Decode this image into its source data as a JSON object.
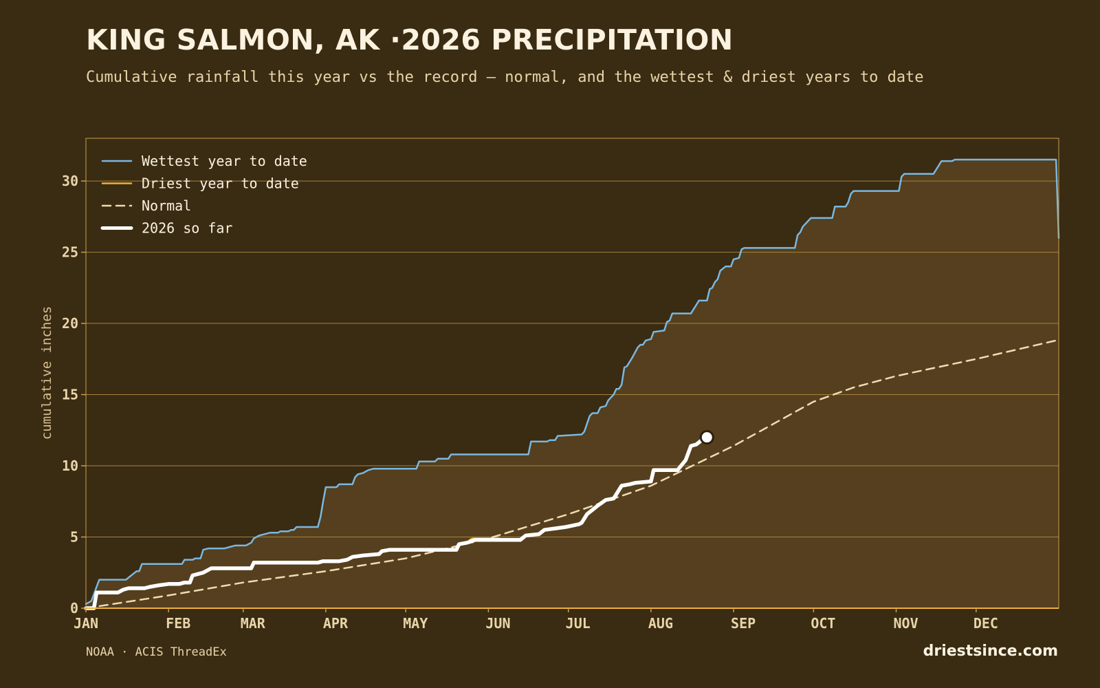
{
  "title": "KING SALMON, AK ·2026 PRECIPITATION",
  "subtitle": "Cumulative rainfall this year vs the record — normal, and the wettest & driest years to date",
  "source": "NOAA · ACIS ThreadEx",
  "brand": "driestsince.com",
  "colors": {
    "background": "#3a2b13",
    "wettest": "#7ab8e0",
    "driest": "#f0b13c",
    "normal": "#efdcb0",
    "current": "#ffffff",
    "fill": "#553f1e",
    "grid": "#a8843c",
    "frame": "#c9a04b"
  },
  "chart_data": {
    "type": "line",
    "ylabel": "cumulative inches",
    "xlabel": "",
    "ylim": [
      0,
      33
    ],
    "xlim": [
      0,
      365
    ],
    "yticks": [
      0,
      5,
      10,
      15,
      20,
      25,
      30
    ],
    "grid": true,
    "legend_position": "top-left",
    "month_ticks": [
      {
        "label": "JAN",
        "day": 0
      },
      {
        "label": "FEB",
        "day": 31
      },
      {
        "label": "MAR",
        "day": 59
      },
      {
        "label": "APR",
        "day": 90
      },
      {
        "label": "MAY",
        "day": 120
      },
      {
        "label": "JUN",
        "day": 151
      },
      {
        "label": "JUL",
        "day": 181
      },
      {
        "label": "AUG",
        "day": 212
      },
      {
        "label": "SEP",
        "day": 243
      },
      {
        "label": "OCT",
        "day": 273
      },
      {
        "label": "NOV",
        "day": 304
      },
      {
        "label": "DEC",
        "day": 334
      }
    ],
    "series": [
      {
        "name": "Wettest year to date",
        "style": "solid",
        "points": [
          [
            0,
            0.3
          ],
          [
            2,
            0.5
          ],
          [
            4,
            1.5
          ],
          [
            5,
            2.0
          ],
          [
            15,
            2.0
          ],
          [
            17,
            2.3
          ],
          [
            19,
            2.6
          ],
          [
            20,
            2.6
          ],
          [
            21,
            3.1
          ],
          [
            36,
            3.1
          ],
          [
            37,
            3.4
          ],
          [
            40,
            3.4
          ],
          [
            41,
            3.5
          ],
          [
            43,
            3.5
          ],
          [
            44,
            4.1
          ],
          [
            46,
            4.2
          ],
          [
            52,
            4.2
          ],
          [
            54,
            4.3
          ],
          [
            56,
            4.4
          ],
          [
            60,
            4.4
          ],
          [
            62,
            4.6
          ],
          [
            63,
            4.9
          ],
          [
            65,
            5.1
          ],
          [
            67,
            5.2
          ],
          [
            69,
            5.3
          ],
          [
            72,
            5.3
          ],
          [
            73,
            5.4
          ],
          [
            76,
            5.4
          ],
          [
            77,
            5.5
          ],
          [
            78,
            5.5
          ],
          [
            79,
            5.7
          ],
          [
            87,
            5.7
          ],
          [
            88,
            6.4
          ],
          [
            89,
            7.5
          ],
          [
            90,
            8.5
          ],
          [
            94,
            8.5
          ],
          [
            95,
            8.7
          ],
          [
            100,
            8.7
          ],
          [
            101,
            9.2
          ],
          [
            102,
            9.4
          ],
          [
            104,
            9.5
          ],
          [
            106,
            9.7
          ],
          [
            108,
            9.8
          ],
          [
            124,
            9.8
          ],
          [
            125,
            10.3
          ],
          [
            131,
            10.3
          ],
          [
            132,
            10.5
          ],
          [
            136,
            10.5
          ],
          [
            137,
            10.8
          ],
          [
            166,
            10.8
          ],
          [
            167,
            11.7
          ],
          [
            173,
            11.7
          ],
          [
            174,
            11.8
          ],
          [
            176,
            11.8
          ],
          [
            177,
            12.1
          ],
          [
            186,
            12.2
          ],
          [
            187,
            12.4
          ],
          [
            189,
            13.5
          ],
          [
            190,
            13.7
          ],
          [
            192,
            13.7
          ],
          [
            193,
            14.1
          ],
          [
            195,
            14.2
          ],
          [
            196,
            14.6
          ],
          [
            198,
            15.0
          ],
          [
            199,
            15.4
          ],
          [
            200,
            15.4
          ],
          [
            201,
            15.7
          ],
          [
            202,
            16.9
          ],
          [
            203,
            17.0
          ],
          [
            205,
            17.6
          ],
          [
            207,
            18.3
          ],
          [
            208,
            18.5
          ],
          [
            209,
            18.5
          ],
          [
            210,
            18.8
          ],
          [
            212,
            18.9
          ],
          [
            213,
            19.4
          ],
          [
            217,
            19.5
          ],
          [
            218,
            20.1
          ],
          [
            219,
            20.2
          ],
          [
            220,
            20.7
          ],
          [
            227,
            20.7
          ],
          [
            229,
            21.3
          ],
          [
            230,
            21.6
          ],
          [
            233,
            21.6
          ],
          [
            234,
            22.4
          ],
          [
            235,
            22.5
          ],
          [
            236,
            22.9
          ],
          [
            237,
            23.1
          ],
          [
            238,
            23.7
          ],
          [
            240,
            24.0
          ],
          [
            242,
            24.0
          ],
          [
            243,
            24.5
          ],
          [
            245,
            24.6
          ],
          [
            246,
            25.2
          ],
          [
            247,
            25.3
          ],
          [
            266,
            25.3
          ],
          [
            267,
            26.2
          ],
          [
            268,
            26.4
          ],
          [
            269,
            26.8
          ],
          [
            271,
            27.2
          ],
          [
            272,
            27.4
          ],
          [
            280,
            27.4
          ],
          [
            281,
            28.2
          ],
          [
            285,
            28.2
          ],
          [
            286,
            28.5
          ],
          [
            287,
            29.1
          ],
          [
            288,
            29.3
          ],
          [
            305,
            29.3
          ],
          [
            306,
            30.3
          ],
          [
            307,
            30.5
          ],
          [
            318,
            30.5
          ],
          [
            319,
            30.8
          ],
          [
            321,
            31.4
          ],
          [
            325,
            31.4
          ],
          [
            326,
            31.5
          ],
          [
            364,
            31.5
          ],
          [
            365,
            26.0
          ]
        ]
      },
      {
        "name": "Driest year to date",
        "style": "solid",
        "points": [
          [
            144,
            4.8
          ],
          [
            145,
            4.9
          ],
          [
            155,
            4.9
          ]
        ]
      },
      {
        "name": "Normal",
        "style": "dashed",
        "points": [
          [
            0,
            0
          ],
          [
            31,
            0.9
          ],
          [
            59,
            1.8
          ],
          [
            90,
            2.6
          ],
          [
            120,
            3.5
          ],
          [
            151,
            4.9
          ],
          [
            181,
            6.6
          ],
          [
            212,
            8.6
          ],
          [
            243,
            11.4
          ],
          [
            273,
            14.5
          ],
          [
            288,
            15.5
          ],
          [
            304,
            16.3
          ],
          [
            334,
            17.5
          ],
          [
            364,
            18.8
          ],
          [
            365,
            18.7
          ]
        ]
      },
      {
        "name": "2026 so far",
        "style": "bold",
        "points": [
          [
            0,
            0
          ],
          [
            3,
            0
          ],
          [
            4,
            1.1
          ],
          [
            12,
            1.1
          ],
          [
            13,
            1.2
          ],
          [
            14,
            1.3
          ],
          [
            16,
            1.4
          ],
          [
            22,
            1.4
          ],
          [
            24,
            1.5
          ],
          [
            27,
            1.6
          ],
          [
            31,
            1.7
          ],
          [
            35,
            1.7
          ],
          [
            37,
            1.8
          ],
          [
            39,
            1.8
          ],
          [
            40,
            2.3
          ],
          [
            44,
            2.5
          ],
          [
            47,
            2.8
          ],
          [
            62,
            2.8
          ],
          [
            63,
            3.2
          ],
          [
            87,
            3.2
          ],
          [
            89,
            3.3
          ],
          [
            95,
            3.3
          ],
          [
            98,
            3.4
          ],
          [
            100,
            3.6
          ],
          [
            104,
            3.7
          ],
          [
            110,
            3.8
          ],
          [
            111,
            4.0
          ],
          [
            114,
            4.1
          ],
          [
            139,
            4.1
          ],
          [
            140,
            4.5
          ],
          [
            143,
            4.6
          ],
          [
            146,
            4.8
          ],
          [
            163,
            4.8
          ],
          [
            165,
            5.1
          ],
          [
            170,
            5.2
          ],
          [
            172,
            5.5
          ],
          [
            176,
            5.6
          ],
          [
            180,
            5.7
          ],
          [
            185,
            5.9
          ],
          [
            186,
            6.0
          ],
          [
            188,
            6.6
          ],
          [
            190,
            6.9
          ],
          [
            192,
            7.2
          ],
          [
            195,
            7.6
          ],
          [
            198,
            7.7
          ],
          [
            201,
            8.6
          ],
          [
            204,
            8.7
          ],
          [
            206,
            8.8
          ],
          [
            212,
            8.9
          ],
          [
            213,
            9.7
          ],
          [
            222,
            9.7
          ],
          [
            225,
            10.4
          ],
          [
            227,
            11.4
          ],
          [
            229,
            11.5
          ],
          [
            231,
            11.8
          ],
          [
            233,
            12.0
          ]
        ]
      }
    ],
    "current_marker": {
      "day": 233,
      "value": 12.0
    }
  }
}
